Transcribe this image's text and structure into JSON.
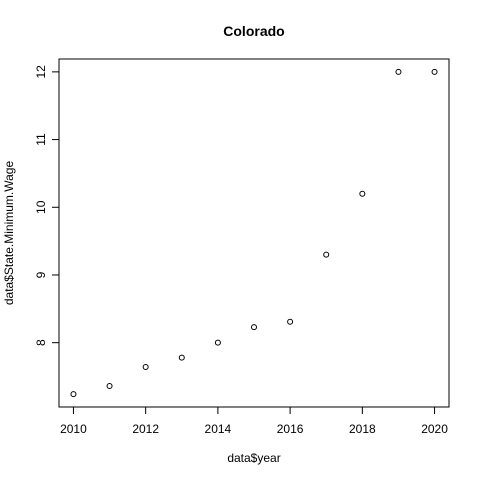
{
  "chart_data": {
    "type": "scatter",
    "title": "Colorado",
    "xlabel": "data$year",
    "ylabel": "data$State.Minimum.Wage",
    "x": [
      2010,
      2011,
      2012,
      2013,
      2014,
      2015,
      2016,
      2017,
      2018,
      2019,
      2020
    ],
    "y": [
      7.24,
      7.36,
      7.64,
      7.78,
      8.0,
      8.23,
      8.31,
      9.3,
      10.2,
      12.0,
      12.0
    ],
    "xticks": [
      2010,
      2012,
      2014,
      2016,
      2018,
      2020
    ],
    "yticks": [
      8,
      9,
      10,
      11,
      12
    ],
    "xlim": [
      2009.6,
      2020.4
    ],
    "ylim": [
      7.05,
      12.19
    ],
    "grid": false,
    "marker": "open-circle"
  }
}
